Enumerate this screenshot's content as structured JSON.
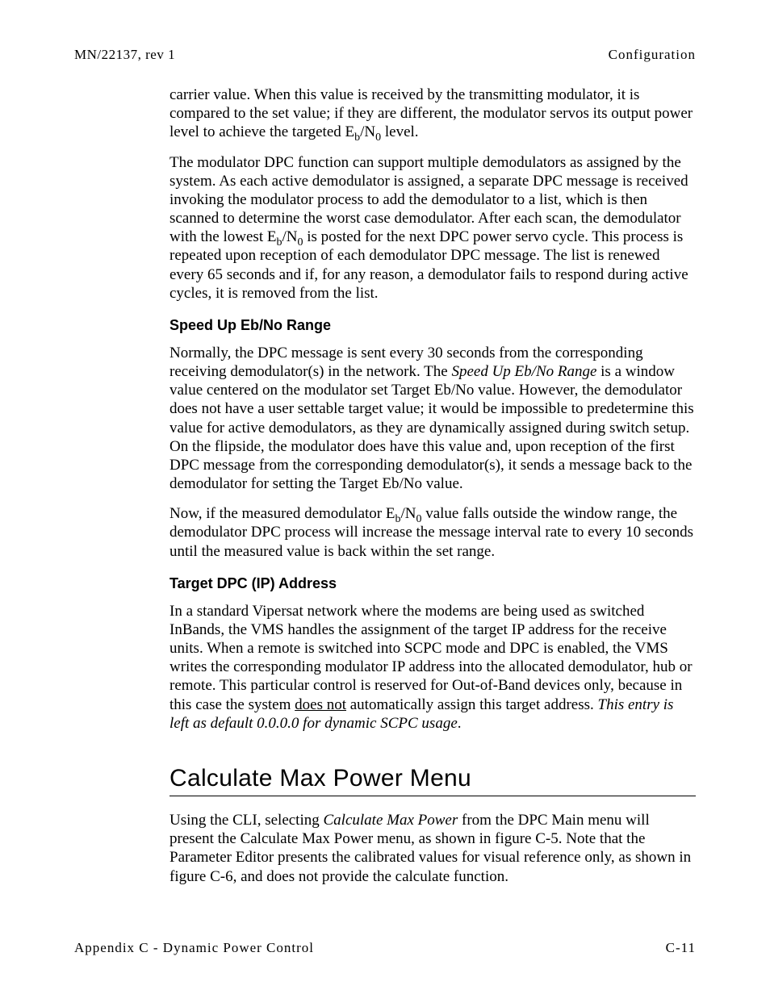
{
  "header": {
    "left": "MN/22137, rev 1",
    "right": "Configuration"
  },
  "para1_a": "carrier value. When this value is received by the transmitting modulator, it is compared to the set value; if they are different, the modulator servos its output power level to achieve the targeted E",
  "para1_b": "b",
  "para1_c": "/N",
  "para1_d": "0",
  "para1_e": " level.",
  "para2_a": "The modulator DPC function can support multiple demodulators as assigned by the system. As each active demodulator is assigned, a separate DPC message is received invoking the modulator process to add the demodulator to a list, which is then scanned to determine the worst case demodulator. After each scan, the demodulator with the lowest E",
  "para2_b": "b",
  "para2_c": "/N",
  "para2_d": "0",
  "para2_e": " is posted for the next DPC power servo cycle. This process is repeated upon reception of each demodulator DPC message. The list is renewed every 65 seconds and if, for any reason, a demodulator fails to respond during active cycles, it is removed from the list.",
  "heading_speed": "Speed Up Eb/No Range",
  "para3_a": "Normally, the DPC message is sent every 30 seconds from the corresponding receiving demodulator(s) in the network. The ",
  "para3_b": "Speed Up Eb/No Range",
  "para3_c": " is a window value centered on the modulator set Target Eb/No value. However, the demodulator does not have a user settable target value; it would be impossible to predetermine this value for active demodulators, as they are dynamically assigned during switch setup. On the flipside, the modulator does have this value and, upon reception of the first DPC message from the corresponding demodulator(s), it sends a message back to the demodulator for setting the Target Eb/No value.",
  "para4_a": "Now, if the measured demodulator E",
  "para4_b": "b",
  "para4_c": "/N",
  "para4_d": "0",
  "para4_e": " value falls outside the window range, the demodulator DPC process will increase the message interval rate to every 10 seconds until the measured value is back within the set range.",
  "heading_target": "Target DPC (IP) Address",
  "para5_a": "In a standard Vipersat network where the modems are being used as switched InBands, the VMS handles the assignment of the target IP address for the receive units. When a remote is switched into SCPC mode and DPC is enabled, the VMS writes the corresponding modulator IP address into the allocated demodulator, hub or remote. This particular control is reserved for Out-of-Band devices only, because in this case the system ",
  "para5_b": "does not",
  "para5_c": " automatically assign this target address. ",
  "para5_d": "This entry is left as default 0.0.0.0 for dynamic SCPC usage",
  "para5_e": ".",
  "heading_calc": "Calculate Max Power Menu",
  "para6_a": "Using the CLI, selecting ",
  "para6_b": "Calculate Max Power",
  "para6_c": " from the DPC Main menu will present the Calculate Max Power menu, as shown in figure C-5. Note that the Parameter Editor presents the calibrated values for visual reference only, as shown in figure C-6, and does not provide the calculate function.",
  "footer": {
    "left": "Appendix C - Dynamic Power Control",
    "right": "C-11"
  }
}
